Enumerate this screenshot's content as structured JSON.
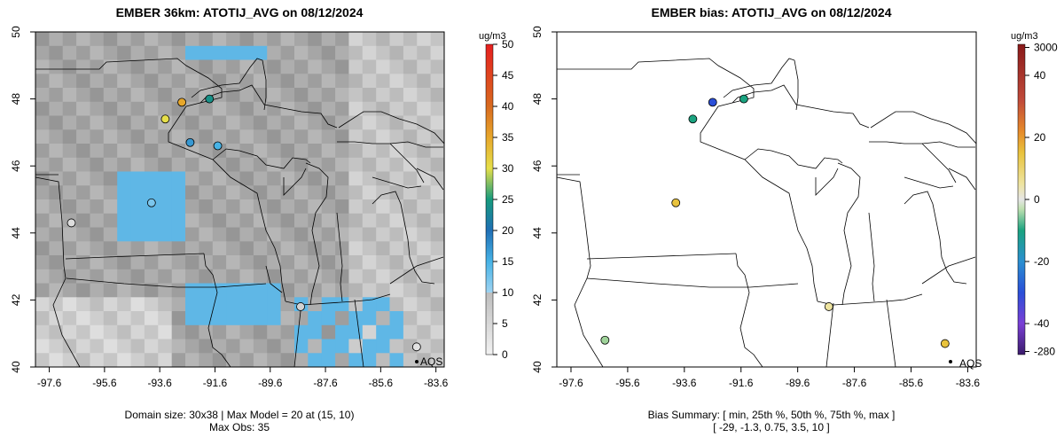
{
  "chart_data": [
    {
      "type": "map",
      "title": "EMBER 36km: ATOTIJ_AVG on 08/12/2024",
      "x_ticks": [
        "-97.6",
        "-95.6",
        "-93.6",
        "-91.6",
        "-89.6",
        "-87.6",
        "-85.6",
        "-83.6"
      ],
      "y_ticks": [
        "40",
        "42",
        "44",
        "46",
        "48",
        "50"
      ],
      "xlim": [
        -98.1,
        -83.3
      ],
      "ylim": [
        40.0,
        50.0
      ],
      "colorbar": {
        "unit": "ug/m3",
        "ticks": [
          "0",
          "5",
          "10",
          "15",
          "20",
          "25",
          "30",
          "35",
          "40",
          "45",
          "50"
        ],
        "range": [
          0,
          50
        ]
      },
      "annotation": "AQS",
      "footer": [
        "Domain size: 30x38 | Max Model = 20 at (15, 10)",
        "Max Obs: 35"
      ],
      "points": [
        {
          "lon": -93.4,
          "lat": 47.4,
          "value": 30
        },
        {
          "lon": -92.8,
          "lat": 47.9,
          "value": 35
        },
        {
          "lon": -91.8,
          "lat": 48.0,
          "value": 24
        },
        {
          "lon": -92.5,
          "lat": 46.7,
          "value": 17
        },
        {
          "lon": -91.5,
          "lat": 46.6,
          "value": 15
        },
        {
          "lon": -93.9,
          "lat": 44.9,
          "value": 12
        },
        {
          "lon": -84.3,
          "lat": 40.6,
          "value": 3
        },
        {
          "lon": -96.8,
          "lat": 44.3,
          "value": 4
        },
        {
          "lon": -88.5,
          "lat": 41.8,
          "value": 6
        }
      ]
    },
    {
      "type": "map",
      "title": "EMBER bias: ATOTIJ_AVG on 08/12/2024",
      "x_ticks": [
        "-97.6",
        "-95.6",
        "-93.6",
        "-91.6",
        "-89.6",
        "-87.6",
        "-85.6",
        "-83.6"
      ],
      "y_ticks": [
        "40",
        "42",
        "44",
        "46",
        "48",
        "50"
      ],
      "xlim": [
        -98.1,
        -83.3
      ],
      "ylim": [
        40.0,
        50.0
      ],
      "colorbar": {
        "unit": "ug/m3",
        "ticks": [
          "3000",
          "40",
          "20",
          "0",
          "-20",
          "-40",
          "-280"
        ]
      },
      "annotation": "AQS",
      "footer": [
        "Bias Summary: [ min, 25th %, 50th %, 75th %, max ]",
        "[ -29,   -1.3,   0.75,   3.5,   10 ]"
      ],
      "bias_summary": {
        "min": -29,
        "p25": -1.3,
        "p50": 0.75,
        "p75": 3.5,
        "max": 10
      },
      "points": [
        {
          "lon": -92.6,
          "lat": 47.9,
          "value": -29
        },
        {
          "lon": -91.5,
          "lat": 48.0,
          "value": -15
        },
        {
          "lon": -93.3,
          "lat": 47.4,
          "value": -12
        },
        {
          "lon": -93.9,
          "lat": 44.9,
          "value": 10
        },
        {
          "lon": -84.4,
          "lat": 40.7,
          "value": 8
        },
        {
          "lon": -88.5,
          "lat": 41.8,
          "value": 5
        },
        {
          "lon": -96.4,
          "lat": 40.8,
          "value": -4
        }
      ]
    }
  ]
}
